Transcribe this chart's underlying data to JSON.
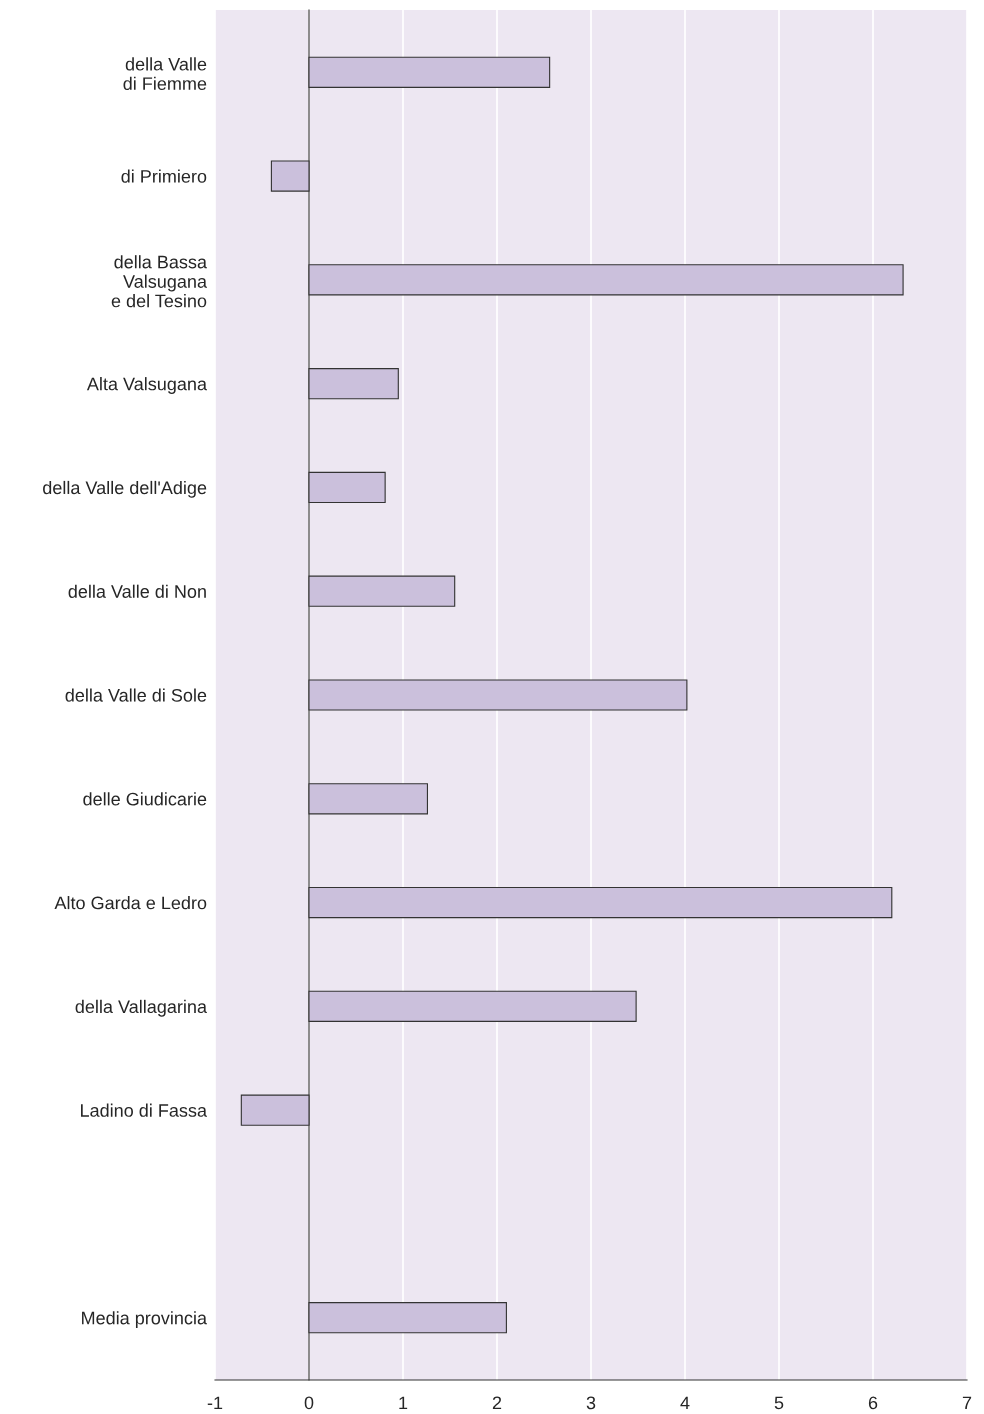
{
  "chart_data": {
    "type": "bar",
    "orientation": "horizontal",
    "categories": [
      "della Valle\ndi Fiemme",
      "di Primiero",
      "della Bassa\nValsugana\ne del Tesino",
      "Alta Valsugana",
      "della Valle dell'Adige",
      "della Valle di Non",
      "della Valle di Sole",
      "delle Giudicarie",
      "Alto Garda e Ledro",
      "della Vallagarina",
      "Ladino di Fassa",
      null,
      "Media provincia"
    ],
    "values": [
      2.56,
      -0.4,
      6.32,
      0.95,
      0.81,
      1.55,
      4.02,
      1.26,
      6.2,
      3.48,
      -0.72,
      null,
      2.1
    ],
    "color": "#cbc0dc",
    "xlim": [
      -1,
      7
    ],
    "xticks": [
      -1,
      0,
      1,
      2,
      3,
      4,
      5,
      6,
      7
    ],
    "grid": "x",
    "legend": false
  }
}
